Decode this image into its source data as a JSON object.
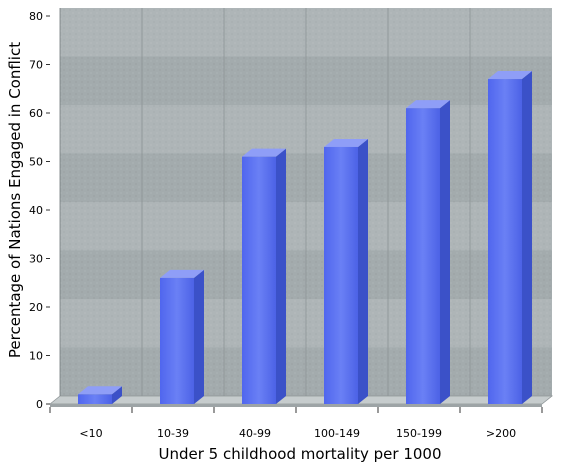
{
  "chart_data": {
    "type": "bar",
    "title": "",
    "xlabel": "Under 5 childhood mortality per 1000",
    "ylabel": "Percentage of Nations Engaged in Conflict",
    "categories": [
      "<10",
      "10-39",
      "40-99",
      "100-149",
      "150-199",
      ">200"
    ],
    "values": [
      2,
      26,
      51,
      53,
      61,
      67
    ],
    "ylim": [
      0,
      80
    ],
    "yticks": [
      "0",
      "10",
      "20",
      "30",
      "40",
      "50",
      "60",
      "70",
      "80"
    ],
    "grid": true,
    "legend": "none",
    "colors": {
      "bar_front": "#5b73f0",
      "bar_side": "#3b51c8",
      "bar_top": "#8f9ef7",
      "wall": "#a9b1b3",
      "floor": "#c6cccd"
    }
  }
}
